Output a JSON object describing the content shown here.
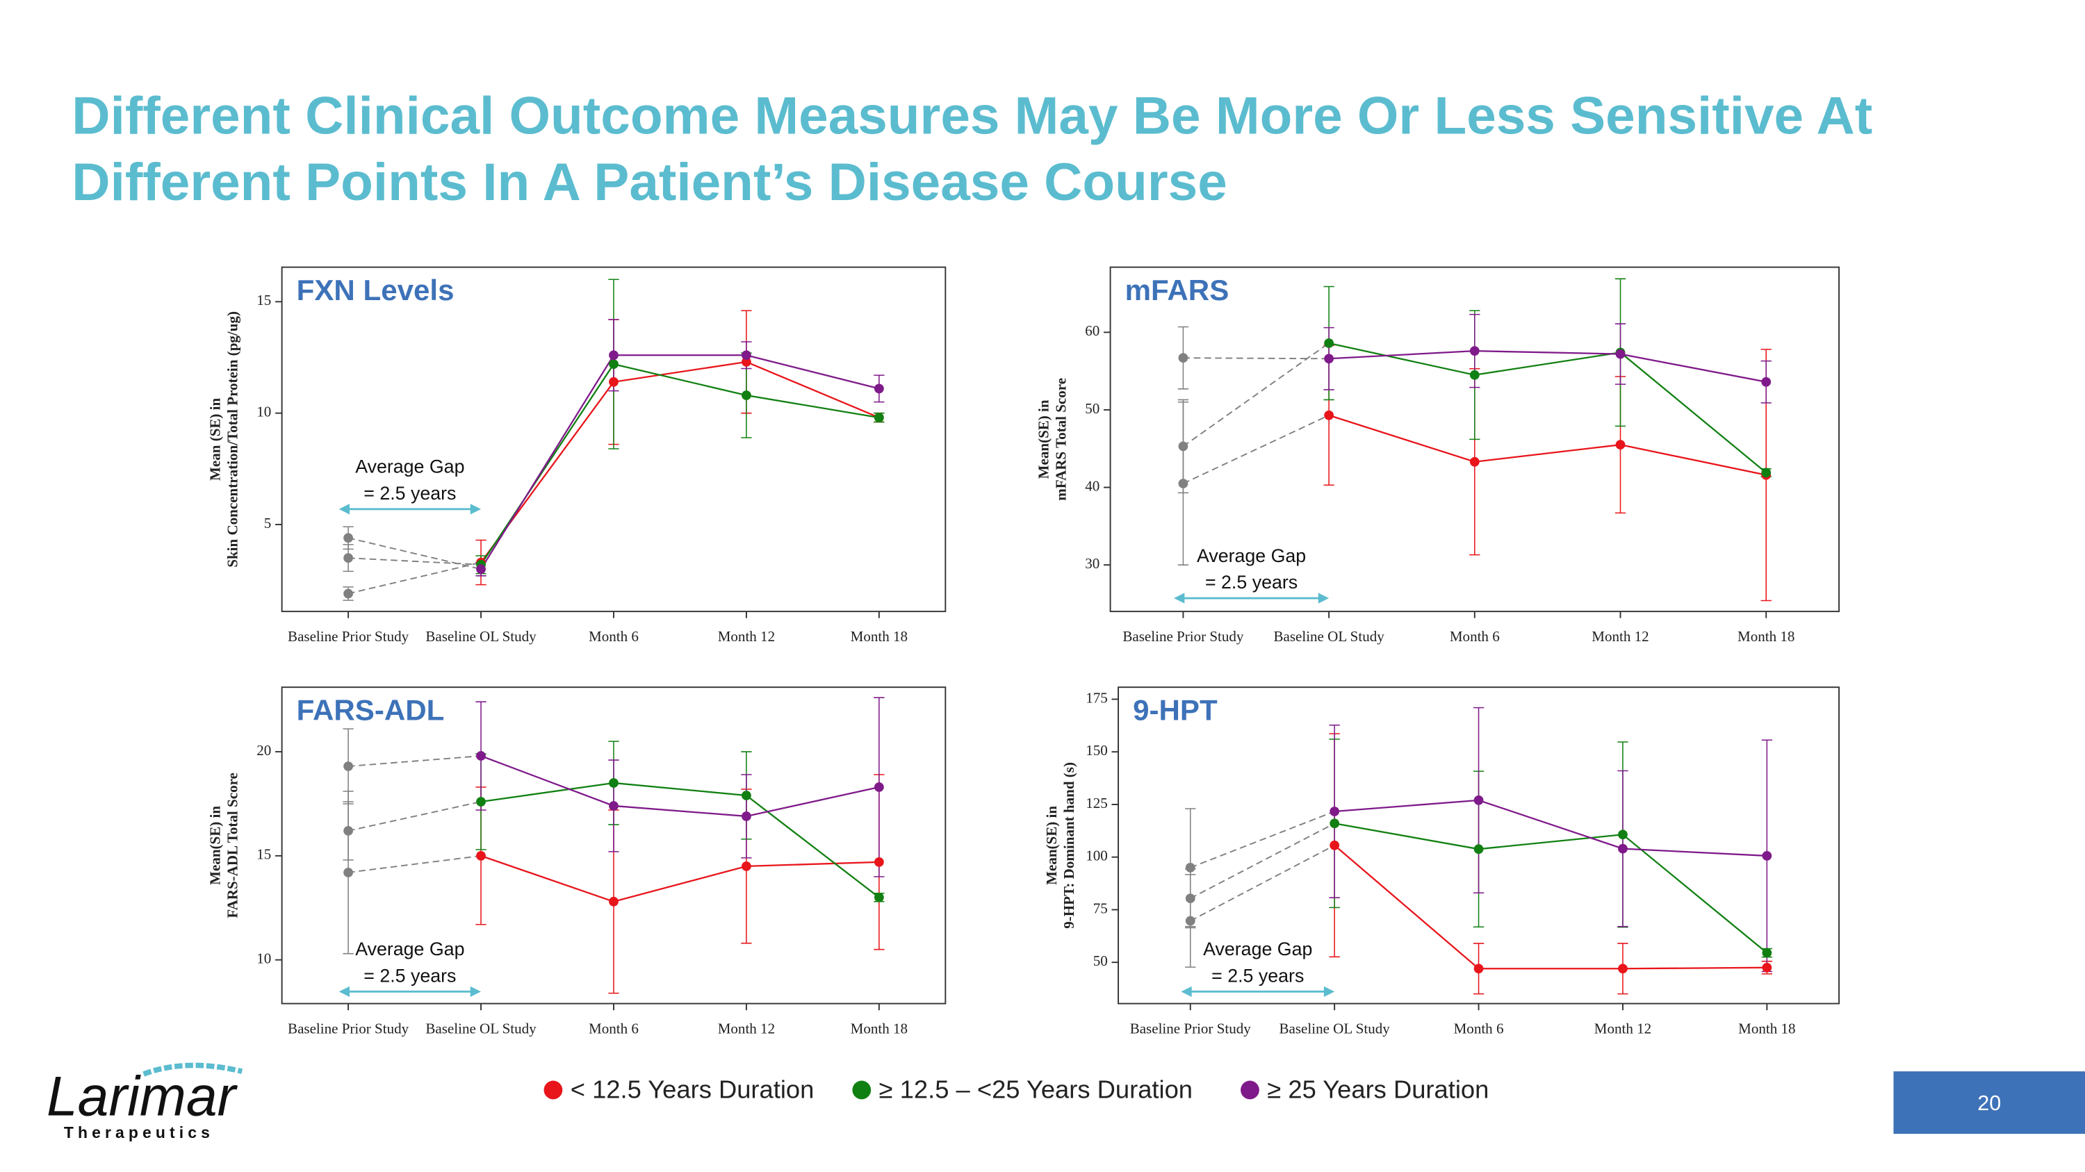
{
  "title": [
    "Different Clinical Outcome Measures May Be More Or Less Sensitive At",
    "Different Points In A Patient’s Disease Course"
  ],
  "legend": [
    {
      "name": "< 12.5 Years Duration",
      "color": "#e8151b"
    },
    {
      "name": "≥ 12.5 – <25 Years Duration",
      "color": "#118012"
    },
    {
      "name": "≥ 25 Years Duration",
      "color": "#7f1a8a"
    }
  ],
  "logo": {
    "name": "Larimar",
    "tagline": "Therapeutics"
  },
  "page_number": "20",
  "chart_data": [
    {
      "type": "line",
      "title": "FXN Levels",
      "y_label": [
        "Mean (SE) in",
        "Skin Concentration/Total Protein (pg/ug)"
      ],
      "annotation": [
        "Average Gap",
        "= 2.5 years"
      ],
      "baseline_color": "#808080",
      "categories": [
        "Baseline Prior Study",
        "Baseline OL Study",
        "Month 6",
        "Month 12",
        "Month 18"
      ],
      "ylim": [
        1.1,
        16.55
      ],
      "yticks": [
        5,
        10,
        15
      ],
      "series": [
        {
          "values": [
            1.9,
            3.3,
            11.4,
            12.3,
            9.8
          ],
          "errors": [
            0.3,
            1.0,
            2.8,
            2.3,
            0.2
          ]
        },
        {
          "values": [
            3.5,
            3.2,
            12.2,
            10.8,
            9.8
          ],
          "errors": [
            0.6,
            0.4,
            3.8,
            1.9,
            0.2
          ]
        },
        {
          "values": [
            4.4,
            3.0,
            12.6,
            12.6,
            11.1
          ],
          "errors": [
            0.5,
            0.3,
            1.6,
            0.6,
            0.6
          ]
        }
      ]
    },
    {
      "type": "line",
      "title": "mFARS",
      "y_label": [
        "Mean(SE) in",
        "mFARS Total Score"
      ],
      "annotation": [
        "Average Gap",
        "= 2.5 years"
      ],
      "baseline_color": "#808080",
      "categories": [
        "Baseline Prior Study",
        "Baseline OL Study",
        "Month 6",
        "Month 12",
        "Month 18"
      ],
      "ylim": [
        24,
        68.4
      ],
      "yticks": [
        30,
        40,
        50,
        60
      ],
      "series": [
        {
          "values": [
            40.5,
            49.3,
            43.3,
            45.5,
            41.6
          ],
          "errors": [
            10.5,
            9.0,
            12.0,
            8.8,
            16.2
          ]
        },
        {
          "values": [
            45.3,
            58.6,
            54.5,
            57.4,
            41.9
          ],
          "errors": [
            6.0,
            7.3,
            8.3,
            9.5,
            0.5
          ]
        },
        {
          "values": [
            56.7,
            56.6,
            57.6,
            57.2,
            53.6
          ],
          "errors": [
            4.0,
            4.0,
            4.7,
            3.9,
            2.7
          ]
        }
      ]
    },
    {
      "type": "line",
      "title": "FARS-ADL",
      "y_label": [
        "Mean(SE) in",
        "FARS-ADL Total Score"
      ],
      "annotation": [
        "Average Gap",
        "= 2.5 years"
      ],
      "baseline_color": "#808080",
      "categories": [
        "Baseline Prior Study",
        "Baseline OL Study",
        "Month 6",
        "Month 12",
        "Month 18"
      ],
      "ylim": [
        7.9,
        23.1
      ],
      "yticks": [
        10,
        15,
        20
      ],
      "series": [
        {
          "values": [
            14.2,
            15.0,
            12.8,
            14.5,
            14.7
          ],
          "errors": [
            3.9,
            3.3,
            4.4,
            3.7,
            4.2
          ]
        },
        {
          "values": [
            16.2,
            17.6,
            18.5,
            17.9,
            13.0
          ],
          "errors": [
            1.4,
            2.3,
            2.0,
            2.1,
            0.2
          ]
        },
        {
          "values": [
            19.3,
            19.8,
            17.4,
            16.9,
            18.3
          ],
          "errors": [
            1.8,
            2.6,
            2.2,
            2.0,
            4.3
          ]
        }
      ]
    },
    {
      "type": "line",
      "title": "9-HPT",
      "y_label": [
        "Mean(SE) in",
        "9-HPT: Dominant hand (s)"
      ],
      "annotation": [
        "Average Gap",
        "= 2.5 years"
      ],
      "baseline_color": "#808080",
      "categories": [
        "Baseline Prior Study",
        "Baseline OL Study",
        "Month 6",
        "Month 12",
        "Month 18"
      ],
      "ylim": [
        30.4,
        180.7
      ],
      "yticks": [
        50,
        75,
        100,
        125,
        150,
        175
      ],
      "series": [
        {
          "values": [
            69.7,
            105.6,
            47,
            47,
            47.5
          ],
          "errors": [
            22,
            53,
            12,
            12,
            3
          ]
        },
        {
          "values": [
            80.4,
            116,
            103.8,
            110.7,
            54.5
          ],
          "errors": [
            14,
            40,
            37,
            44,
            2
          ]
        },
        {
          "values": [
            95,
            121.7,
            127,
            104,
            100.6
          ],
          "errors": [
            28,
            41,
            44,
            37,
            55
          ]
        }
      ]
    }
  ]
}
